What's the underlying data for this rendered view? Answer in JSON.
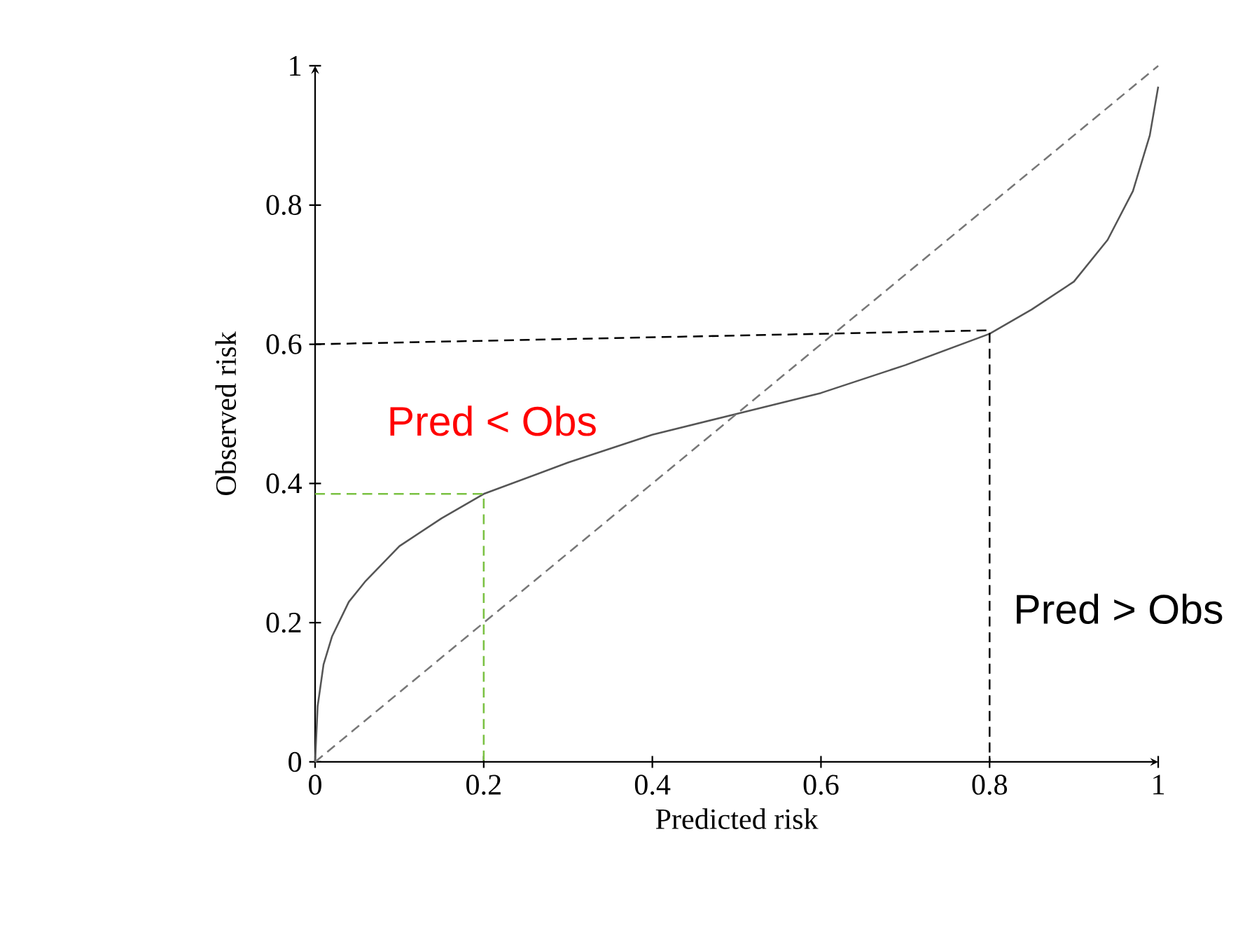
{
  "chart_data": {
    "type": "line",
    "xlabel": "Predicted risk",
    "ylabel": "Observed risk",
    "xlim": [
      0,
      1
    ],
    "ylim": [
      0,
      1
    ],
    "xticks": [
      0,
      0.2,
      0.4,
      0.6,
      0.8,
      1
    ],
    "yticks": [
      0,
      0.2,
      0.4,
      0.6,
      0.8,
      1
    ],
    "grid": false,
    "marker": "none",
    "series": [
      {
        "color": "#555555",
        "line_style": "solid",
        "x": [
          0,
          0.003,
          0.01,
          0.02,
          0.04,
          0.06,
          0.1,
          0.15,
          0.2,
          0.3,
          0.4,
          0.5,
          0.6,
          0.7,
          0.8,
          0.85,
          0.9,
          0.94,
          0.97,
          0.99,
          1
        ],
        "values": [
          0,
          0.08,
          0.14,
          0.18,
          0.23,
          0.26,
          0.31,
          0.35,
          0.385,
          0.43,
          0.47,
          0.5,
          0.53,
          0.57,
          0.615,
          0.65,
          0.69,
          0.75,
          0.82,
          0.9,
          0.97
        ]
      },
      {
        "color": "#777777",
        "line_style": "dashed",
        "x": [
          0,
          1
        ],
        "values": [
          0,
          1
        ]
      },
      {
        "color": "#000000",
        "line_style": "dashed",
        "x": [
          0,
          0.8,
          0.8
        ],
        "values": [
          0.6,
          0.62,
          0
        ]
      },
      {
        "color": "#7ac142",
        "line_style": "dashed",
        "x": [
          0,
          0.2,
          0.2
        ],
        "values": [
          0.385,
          0.385,
          0
        ]
      }
    ],
    "annotations": [
      "Pred < Obs",
      "Pred > Obs"
    ]
  }
}
